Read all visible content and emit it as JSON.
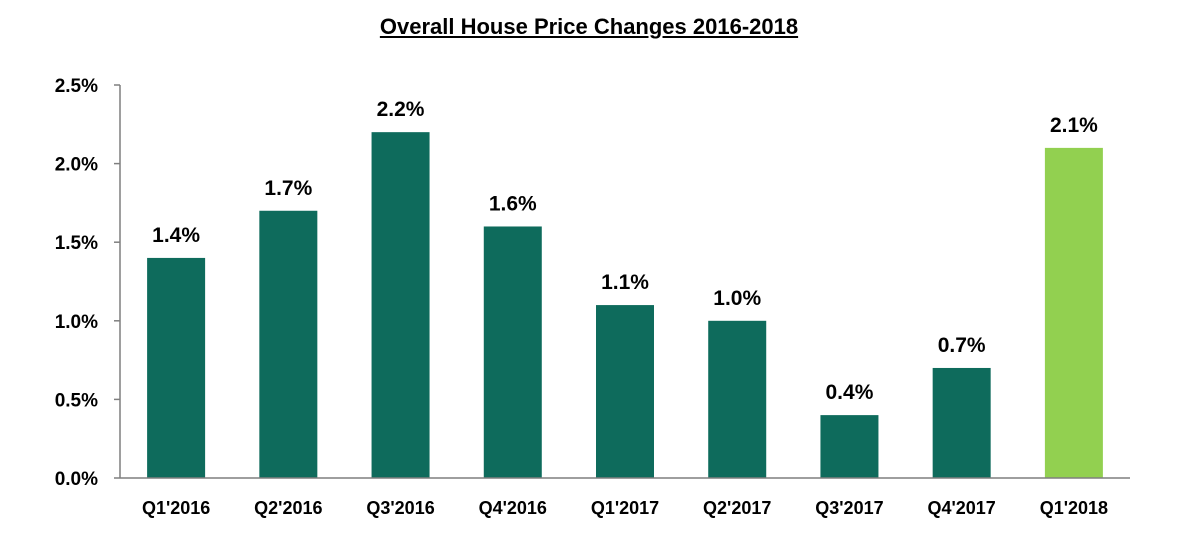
{
  "chart_data": {
    "type": "bar",
    "title": "Overall House Price  Changes 2016-2018",
    "categories": [
      "Q1'2016",
      "Q2'2016",
      "Q3'2016",
      "Q4'2016",
      "Q1'2017",
      "Q2'2017",
      "Q3'2017",
      "Q4'2017",
      "Q1'2018"
    ],
    "values": [
      1.4,
      1.7,
      2.2,
      1.6,
      1.1,
      1.0,
      0.4,
      0.7,
      2.1
    ],
    "data_labels": [
      "1.4%",
      "1.7%",
      "2.2%",
      "1.6%",
      "1.1%",
      "1.0%",
      "0.4%",
      "0.7%",
      "2.1%"
    ],
    "ylim": [
      0,
      2.5
    ],
    "yticks": [
      0,
      0.5,
      1.0,
      1.5,
      2.0,
      2.5
    ],
    "ytick_labels": [
      "0.0%",
      "0.5%",
      "1.0%",
      "1.5%",
      "2.0%",
      "2.5%"
    ],
    "xlabel": "",
    "ylabel": "",
    "grid": false,
    "bar_colors": [
      "#0e6b5c",
      "#0e6b5c",
      "#0e6b5c",
      "#0e6b5c",
      "#0e6b5c",
      "#0e6b5c",
      "#0e6b5c",
      "#0e6b5c",
      "#92d050"
    ]
  }
}
